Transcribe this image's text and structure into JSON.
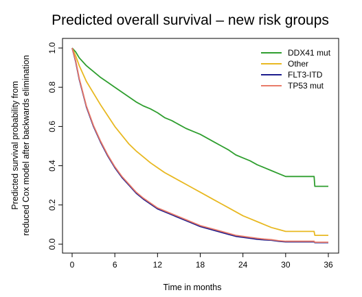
{
  "chart_data": {
    "type": "line",
    "title": "Predicted overall survival – new risk groups",
    "xlabel": "Time in months",
    "ylabel_lines": [
      "Predicted survival probability from",
      "reduced Cox model after backwards elimination"
    ],
    "xlim": [
      0,
      36
    ],
    "ylim": [
      0,
      1
    ],
    "x_ticks": [
      0,
      6,
      12,
      18,
      24,
      30,
      36
    ],
    "y_ticks": [
      "0.0",
      "0.2",
      "0.4",
      "0.6",
      "0.8",
      "1.0"
    ],
    "grid": false,
    "legend_position": "top-right",
    "series": [
      {
        "name": "DDX41 mut",
        "color": "#2e9e2e",
        "x": [
          0,
          0.5,
          1,
          1.5,
          2,
          3,
          4,
          5,
          6,
          7,
          8,
          9,
          10,
          11,
          12,
          13,
          14,
          15,
          16,
          17,
          18,
          19,
          20,
          21,
          22,
          23,
          24,
          25,
          26,
          27,
          28,
          29,
          30,
          31,
          32,
          33,
          34,
          34.1,
          35,
          36
        ],
        "y": [
          1.0,
          0.98,
          0.95,
          0.93,
          0.91,
          0.88,
          0.85,
          0.825,
          0.8,
          0.775,
          0.75,
          0.725,
          0.705,
          0.69,
          0.67,
          0.645,
          0.63,
          0.61,
          0.59,
          0.575,
          0.56,
          0.54,
          0.52,
          0.5,
          0.48,
          0.455,
          0.44,
          0.425,
          0.405,
          0.39,
          0.375,
          0.36,
          0.345,
          0.345,
          0.345,
          0.345,
          0.345,
          0.295,
          0.295,
          0.295
        ]
      },
      {
        "name": "Other",
        "color": "#e8b820",
        "x": [
          0,
          0.5,
          1,
          1.5,
          2,
          3,
          4,
          5,
          6,
          7,
          8,
          9,
          10,
          11,
          12,
          13,
          14,
          15,
          16,
          17,
          18,
          19,
          20,
          21,
          22,
          23,
          24,
          25,
          26,
          27,
          28,
          29,
          30,
          31,
          32,
          33,
          34,
          34.1,
          35,
          36
        ],
        "y": [
          1.0,
          0.96,
          0.91,
          0.87,
          0.83,
          0.77,
          0.71,
          0.655,
          0.6,
          0.555,
          0.51,
          0.475,
          0.445,
          0.415,
          0.39,
          0.365,
          0.345,
          0.325,
          0.305,
          0.285,
          0.265,
          0.245,
          0.225,
          0.205,
          0.185,
          0.165,
          0.145,
          0.13,
          0.115,
          0.1,
          0.085,
          0.075,
          0.065,
          0.065,
          0.065,
          0.065,
          0.065,
          0.045,
          0.045,
          0.045
        ]
      },
      {
        "name": "FLT3-ITD",
        "color": "#1a1a8c",
        "x": [
          0,
          0.5,
          1,
          1.5,
          2,
          3,
          4,
          5,
          6,
          7,
          8,
          9,
          10,
          11,
          12,
          13,
          14,
          15,
          16,
          17,
          18,
          19,
          20,
          21,
          22,
          23,
          24,
          25,
          26,
          27,
          28,
          29,
          30,
          31,
          32,
          33,
          34,
          34.1,
          35,
          36
        ],
        "y": [
          1.0,
          0.93,
          0.84,
          0.77,
          0.7,
          0.6,
          0.52,
          0.45,
          0.39,
          0.34,
          0.3,
          0.26,
          0.23,
          0.205,
          0.18,
          0.165,
          0.15,
          0.135,
          0.12,
          0.105,
          0.09,
          0.08,
          0.07,
          0.06,
          0.05,
          0.04,
          0.035,
          0.03,
          0.025,
          0.022,
          0.02,
          0.015,
          0.012,
          0.012,
          0.012,
          0.012,
          0.012,
          0.008,
          0.008,
          0.008
        ]
      },
      {
        "name": "TP53 mut",
        "color": "#e87a68",
        "x": [
          0,
          0.5,
          1,
          1.5,
          2,
          3,
          4,
          5,
          6,
          7,
          8,
          9,
          10,
          11,
          12,
          13,
          14,
          15,
          16,
          17,
          18,
          19,
          20,
          21,
          22,
          23,
          24,
          25,
          26,
          27,
          28,
          29,
          30,
          31,
          32,
          33,
          34,
          34.1,
          35,
          36
        ],
        "y": [
          1.0,
          0.935,
          0.845,
          0.775,
          0.705,
          0.605,
          0.525,
          0.455,
          0.395,
          0.345,
          0.305,
          0.265,
          0.235,
          0.21,
          0.185,
          0.17,
          0.155,
          0.14,
          0.125,
          0.11,
          0.095,
          0.085,
          0.075,
          0.065,
          0.055,
          0.045,
          0.04,
          0.035,
          0.03,
          0.026,
          0.023,
          0.018,
          0.015,
          0.015,
          0.015,
          0.015,
          0.015,
          0.01,
          0.01,
          0.01
        ]
      }
    ]
  }
}
